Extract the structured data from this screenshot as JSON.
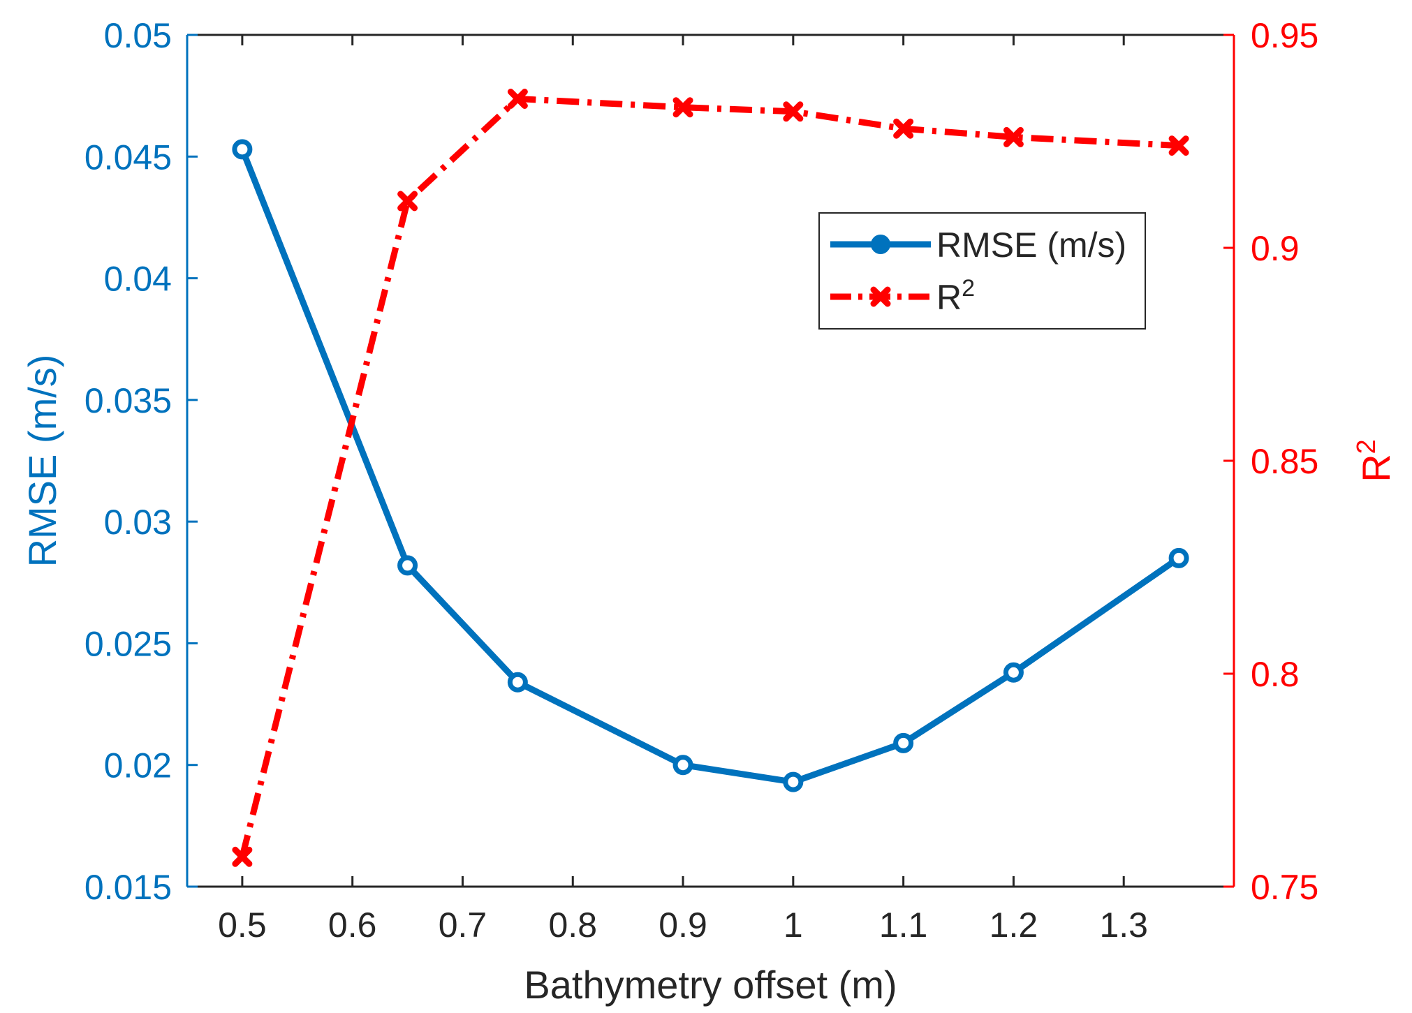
{
  "chart_data": {
    "type": "line",
    "x": [
      0.5,
      0.65,
      0.75,
      0.9,
      1.0,
      1.1,
      1.2,
      1.35
    ],
    "xlabel": "Bathymetry offset (m)",
    "xlim": [
      0.45,
      1.4
    ],
    "xticks": [
      "0.5",
      "0.6",
      "0.7",
      "0.8",
      "0.9",
      "1",
      "1.1",
      "1.2",
      "1.3"
    ],
    "series": [
      {
        "name": "RMSE (m/s)",
        "axis": "left",
        "color": "#0072BD",
        "marker": "circle",
        "linestyle": "solid",
        "values": [
          0.0453,
          0.0282,
          0.0234,
          0.02,
          0.0193,
          0.0209,
          0.0238,
          0.0285
        ]
      },
      {
        "name": "R",
        "name_superscript": "2",
        "axis": "right",
        "color": "#FF0000",
        "marker": "x",
        "linestyle": "dash-dot",
        "values": [
          0.757,
          0.911,
          0.935,
          0.933,
          0.932,
          0.928,
          0.926,
          0.924
        ]
      }
    ],
    "yleft": {
      "label": "RMSE (m/s)",
      "ylim": [
        0.015,
        0.05
      ],
      "ticks": [
        "0.015",
        "0.02",
        "0.025",
        "0.03",
        "0.035",
        "0.04",
        "0.045",
        "0.05"
      ],
      "color": "#0072BD"
    },
    "yright": {
      "label": "R",
      "label_superscript": "2",
      "ylim": [
        0.75,
        0.95
      ],
      "ticks": [
        "0.75",
        "0.8",
        "0.85",
        "0.9",
        "0.95"
      ],
      "color": "#FF0000"
    },
    "legend_position": "top-right",
    "grid": false
  }
}
